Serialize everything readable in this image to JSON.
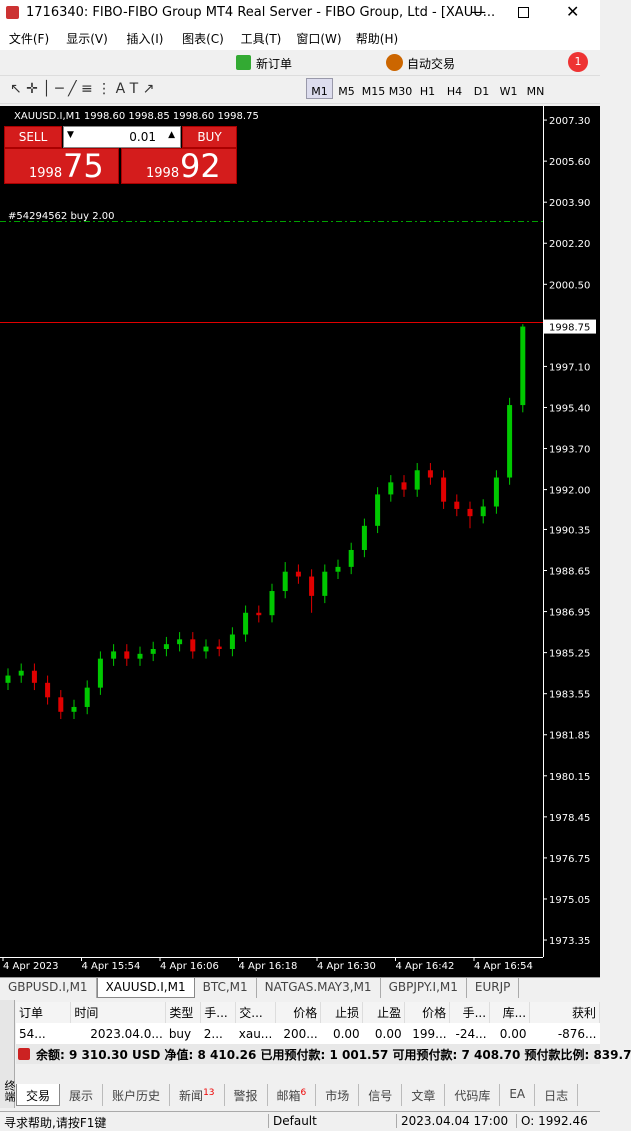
{
  "title_bar": "1716340: FIBO-FIBO Group MT4 Real Server - FIBO Group, Ltd - [XAUU...",
  "menu": [
    "文件(F)",
    "显示(V)",
    "插入(I)",
    "图表(C)",
    "工具(T)",
    "窗口(W)",
    "帮助(H)"
  ],
  "notification_count": "1",
  "toolbar": {
    "new_order": "新订单",
    "auto_trade": "自动交易",
    "timeframes": [
      "M1",
      "M5",
      "M15",
      "M30",
      "H1",
      "H4",
      "D1",
      "W1",
      "MN"
    ]
  },
  "chart": {
    "type": "candlestick",
    "header": "XAUUSD.I,M1  1998.60 1998.85 1998.60 1998.75",
    "ylim": [
      1972.73,
      2007.8
    ],
    "yticks": [
      {
        "value": 2007.3,
        "label": "2007.30"
      },
      {
        "value": 2005.6,
        "label": "2005.60"
      },
      {
        "value": 2003.9,
        "label": "2003.90"
      },
      {
        "value": 2002.2,
        "label": "2002.20"
      },
      {
        "value": 2000.5,
        "label": "2000.50"
      },
      1998.75,
      {
        "value": 1997.1,
        "label": "1997.10"
      },
      {
        "value": 1995.4,
        "label": "1995.40"
      },
      {
        "value": 1993.7,
        "label": "1993.70"
      },
      {
        "value": 1992.0,
        "label": "1992.00"
      },
      1990.35,
      1988.65,
      1986.95,
      1985.25,
      1983.55,
      1981.85,
      {
        "value": 1980.15,
        "label": "1980.15"
      },
      1978.45,
      1976.75,
      1975.05,
      1973.35
    ],
    "xlabels": [
      "4 Apr 2023",
      "4 Apr 15:54",
      "4 Apr 16:06",
      "4 Apr 16:18",
      "4 Apr 16:30",
      "4 Apr 16:42",
      "4 Apr 16:54"
    ],
    "open": [
      1984.0,
      1984.3,
      1984.5,
      1984.0,
      1983.4,
      1982.8,
      1983.0,
      1983.8,
      1985.0,
      1985.3,
      1985.0,
      1985.2,
      1985.4,
      1985.6,
      1985.8,
      1985.3,
      1985.5,
      1985.4,
      1986.0,
      1986.9,
      1986.8,
      1987.8,
      1988.6,
      1988.4,
      1987.6,
      1988.6,
      1988.8,
      1989.5,
      1990.5,
      1991.8,
      1992.3,
      1992.0,
      1992.8,
      1992.5,
      1991.5,
      1991.2,
      1990.9,
      1991.3,
      1992.5,
      1995.5
    ],
    "high": [
      1984.6,
      1984.8,
      1984.8,
      1984.3,
      1983.7,
      1983.3,
      1984.1,
      1985.3,
      1985.6,
      1985.6,
      1985.5,
      1985.7,
      1985.9,
      1986.1,
      1986.1,
      1985.8,
      1985.8,
      1986.3,
      1987.2,
      1987.2,
      1988.1,
      1989.0,
      1988.9,
      1988.7,
      1988.9,
      1989.1,
      1989.8,
      1990.8,
      1992.1,
      1992.6,
      1992.6,
      1993.1,
      1993.1,
      1992.8,
      1991.8,
      1991.5,
      1991.6,
      1992.8,
      1995.8,
      1998.85
    ],
    "low": [
      1983.7,
      1984.0,
      1983.7,
      1983.1,
      1982.5,
      1982.5,
      1982.7,
      1983.5,
      1984.7,
      1984.7,
      1984.7,
      1984.9,
      1985.1,
      1985.3,
      1985.0,
      1985.0,
      1985.1,
      1985.1,
      1985.7,
      1986.5,
      1986.5,
      1987.5,
      1988.1,
      1986.9,
      1987.3,
      1988.3,
      1988.5,
      1989.2,
      1990.2,
      1991.5,
      1991.7,
      1991.7,
      1992.2,
      1991.2,
      1990.9,
      1990.4,
      1990.6,
      1991.0,
      1992.2,
      1995.2
    ],
    "close": [
      1984.3,
      1984.5,
      1984.0,
      1983.4,
      1982.8,
      1983.0,
      1983.8,
      1985.0,
      1985.3,
      1985.0,
      1985.2,
      1985.4,
      1985.6,
      1985.8,
      1985.3,
      1985.5,
      1985.4,
      1986.0,
      1986.9,
      1986.8,
      1987.8,
      1988.6,
      1988.4,
      1987.6,
      1988.6,
      1988.8,
      1989.5,
      1990.5,
      1991.8,
      1992.3,
      1992.0,
      1992.8,
      1992.5,
      1991.5,
      1991.2,
      1990.9,
      1991.3,
      1992.5,
      1995.5,
      1998.75
    ],
    "up_color": "#00c800",
    "down_color": "#e00000",
    "order_label": "#54294562 buy 2.00",
    "order_price": 2003.1,
    "ask": 1998.92
  },
  "trade_panel": {
    "sell": "SELL",
    "buy": "BUY",
    "lots": "0.01",
    "bid_small": "1998",
    "bid_big": "75",
    "ask_small": "1998",
    "ask_big": "92"
  },
  "chart_tabs": [
    "GBPUSD.I,M1",
    "XAUUSD.I,M1",
    "BTC,M1",
    "NATGAS.MAY3,M1",
    "GBPJPY.I,M1",
    "EURJP"
  ],
  "terminal": {
    "side_label": "终端",
    "columns": [
      "订单",
      "时间",
      "类型",
      "手...",
      "交...",
      "价格",
      "止损",
      "止盈",
      "价格",
      "手...",
      "库...",
      "获利"
    ],
    "row": [
      "54...",
      "2023.04.0...",
      "buy",
      "2...",
      "xau...",
      "200...",
      "0.00",
      "0.00",
      "199...",
      "-24...",
      "0.00",
      "-876..."
    ],
    "summary": "余额: 9 310.30 USD  净值: 8 410.26  已用预付款: 1 001.57  可用预付款: 7 408.70  预付款比例: 839.7",
    "tabs": [
      "交易",
      "展示",
      "账户历史",
      "新闻",
      "警报",
      "邮箱",
      "市场",
      "信号",
      "文章",
      "代码库",
      "EA",
      "日志"
    ],
    "news_count": "13",
    "mail_count": "6"
  },
  "status_bar": [
    "寻求帮助,请按F1键",
    "Default",
    "2023.04.04 17:00",
    "O: 1992.46"
  ]
}
